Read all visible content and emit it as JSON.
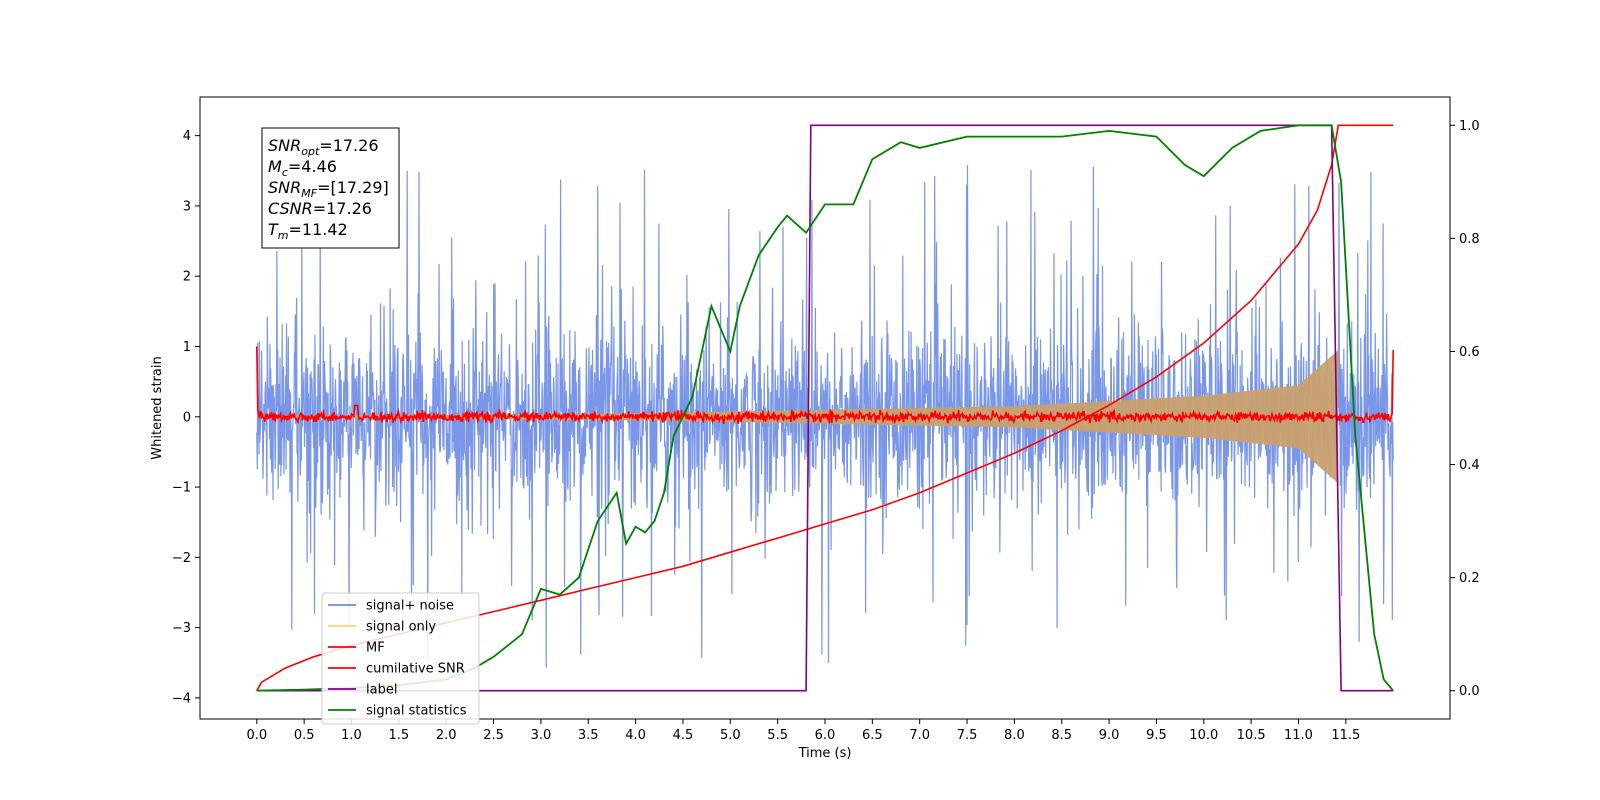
{
  "chart_data": {
    "type": "line",
    "xlabel": "Time (s)",
    "ylabel": "Whitened strain",
    "xlim": [
      -0.6,
      12.6
    ],
    "ylim": [
      -4.3,
      4.55
    ],
    "y2lim": [
      -0.05,
      1.05
    ],
    "x_ticks": [
      0.0,
      0.5,
      1.0,
      1.5,
      2.0,
      2.5,
      3.0,
      3.5,
      4.0,
      4.5,
      5.0,
      5.5,
      6.0,
      6.5,
      7.0,
      7.5,
      8.0,
      8.5,
      9.0,
      9.5,
      10.0,
      10.5,
      11.0,
      11.5
    ],
    "x_tick_labels": [
      "0.0",
      "0.5",
      "1.0",
      "1.5",
      "2.0",
      "2.5",
      "3.0",
      "3.5",
      "4.0",
      "4.5",
      "5.0",
      "5.5",
      "6.0",
      "6.5",
      "7.0",
      "7.5",
      "8.0",
      "8.5",
      "9.0",
      "9.5",
      "10.0",
      "10.5",
      "11.0",
      "11.5"
    ],
    "y_ticks": [
      -4,
      -3,
      -2,
      -1,
      0,
      1,
      2,
      3,
      4
    ],
    "y_tick_labels": [
      "−4",
      "−3",
      "−2",
      "−1",
      "0",
      "1",
      "2",
      "3",
      "4"
    ],
    "y2_ticks": [
      0.0,
      0.2,
      0.4,
      0.6,
      0.8,
      1.0
    ],
    "y2_tick_labels": [
      "0.0",
      "0.2",
      "0.4",
      "0.6",
      "0.8",
      "1.0"
    ],
    "annotation": {
      "lines": [
        {
          "sym": "SNR",
          "sub": "opt",
          "val": "=17.26"
        },
        {
          "sym": "M",
          "sub": "c",
          "val": "=4.46"
        },
        {
          "sym": "SNR",
          "sub": "MF",
          "val": "=[17.29]"
        },
        {
          "sym": "CSNR",
          "sub": "",
          "val": "=17.26"
        },
        {
          "sym": "T",
          "sub": "m",
          "val": "=11.42"
        }
      ]
    },
    "legend": {
      "position": "lower-left",
      "entries": [
        {
          "label": "signal+ noise",
          "color": "#6a8be6"
        },
        {
          "label": "signal only",
          "color": "#ffd27a"
        },
        {
          "label": "MF",
          "color": "#ff0000"
        },
        {
          "label": "cumilative SNR",
          "color": "#ff0000"
        },
        {
          "label": "label",
          "color": "#800080"
        },
        {
          "label": "signal statistics",
          "color": "#008000"
        }
      ]
    },
    "series": [
      {
        "name": "signal+ noise",
        "axis": "left",
        "color": "#6a8be6",
        "description": "noise band approx ±1.2 with spikes to ±3.6, t=0 to 12"
      },
      {
        "name": "signal only",
        "axis": "left",
        "color": "#c8a06e",
        "chirp_envelope": [
          [
            0,
            0.01
          ],
          [
            4,
            0.05
          ],
          [
            8,
            0.15
          ],
          [
            10,
            0.3
          ],
          [
            11,
            0.45
          ],
          [
            11.42,
            0.95
          ]
        ]
      },
      {
        "name": "MF",
        "axis": "left",
        "color": "#ff0000",
        "description": "fluctuates near 0 (±0.1), starts at 1.0 at t=0, ends 0.95 at t=12"
      },
      {
        "name": "cumilative SNR",
        "axis": "right",
        "color": "#ff0000",
        "x": [
          0.0,
          0.05,
          0.3,
          0.6,
          1.0,
          1.5,
          2.0,
          2.5,
          3.0,
          3.5,
          4.0,
          4.5,
          5.0,
          5.5,
          6.0,
          6.5,
          7.0,
          7.5,
          8.0,
          8.5,
          9.0,
          9.5,
          10.0,
          10.5,
          11.0,
          11.2,
          11.35,
          11.42,
          12.0
        ],
        "y": [
          0.0,
          0.015,
          0.04,
          0.06,
          0.08,
          0.1,
          0.12,
          0.14,
          0.16,
          0.18,
          0.2,
          0.22,
          0.245,
          0.27,
          0.295,
          0.32,
          0.35,
          0.385,
          0.42,
          0.46,
          0.505,
          0.555,
          0.615,
          0.69,
          0.79,
          0.85,
          0.93,
          1.0,
          1.0
        ]
      },
      {
        "name": "label",
        "axis": "right",
        "color": "#800080",
        "x": [
          0.0,
          5.8,
          5.85,
          11.35,
          11.45,
          12.0
        ],
        "y": [
          0.0,
          0.0,
          1.0,
          1.0,
          0.0,
          0.0
        ]
      },
      {
        "name": "signal statistics",
        "axis": "right",
        "color": "#008000",
        "x": [
          0.0,
          0.5,
          1.0,
          1.5,
          2.0,
          2.3,
          2.5,
          2.8,
          3.0,
          3.2,
          3.4,
          3.6,
          3.8,
          3.9,
          4.0,
          4.1,
          4.2,
          4.3,
          4.4,
          4.6,
          4.7,
          4.8,
          4.9,
          5.0,
          5.1,
          5.3,
          5.5,
          5.6,
          5.8,
          6.0,
          6.3,
          6.5,
          6.8,
          7.0,
          7.5,
          8.0,
          8.5,
          9.0,
          9.5,
          9.8,
          10.0,
          10.3,
          10.6,
          11.0,
          11.2,
          11.35,
          11.45,
          11.6,
          11.8,
          11.9,
          12.0
        ],
        "y": [
          0.0,
          0.002,
          0.005,
          0.01,
          0.02,
          0.04,
          0.06,
          0.1,
          0.18,
          0.17,
          0.2,
          0.3,
          0.35,
          0.26,
          0.29,
          0.28,
          0.3,
          0.35,
          0.45,
          0.52,
          0.6,
          0.68,
          0.64,
          0.6,
          0.68,
          0.77,
          0.82,
          0.84,
          0.81,
          0.86,
          0.86,
          0.94,
          0.97,
          0.96,
          0.98,
          0.98,
          0.98,
          0.99,
          0.98,
          0.93,
          0.91,
          0.96,
          0.99,
          1.0,
          1.0,
          1.0,
          0.9,
          0.45,
          0.1,
          0.02,
          0.0
        ]
      }
    ]
  }
}
